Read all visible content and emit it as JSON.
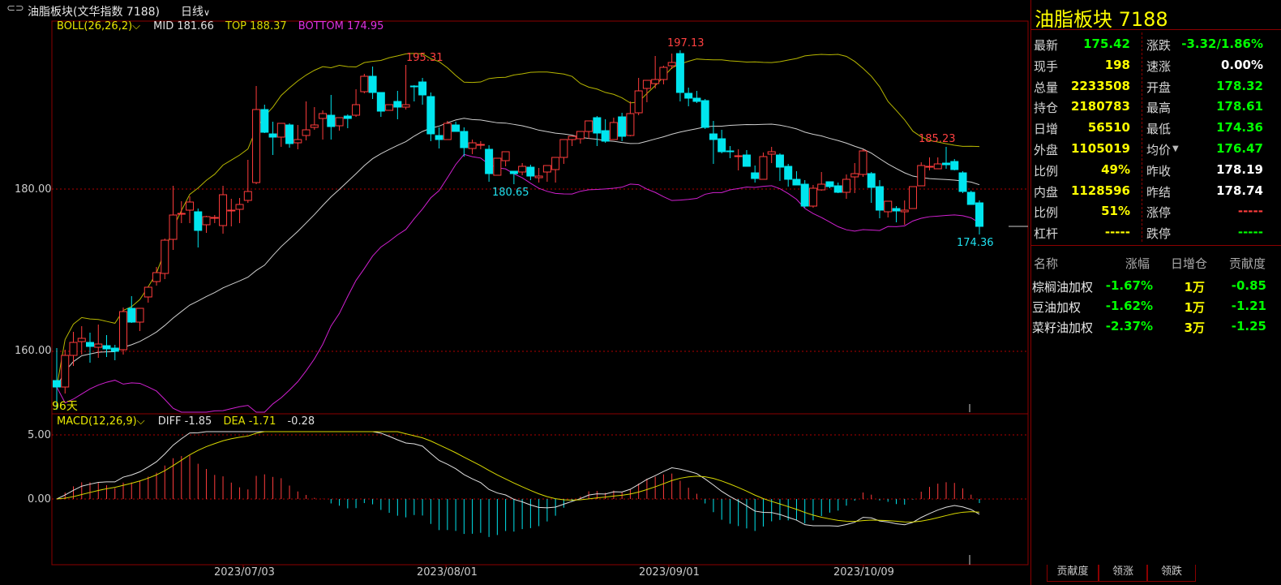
{
  "header": {
    "title": "油脂板块(文华指数  7188)",
    "period": "日线",
    "period_arrow": "∨",
    "icon": "link-icon"
  },
  "boll": {
    "label": "BOLL(26,26,2)",
    "mid": "MID 181.66",
    "top": "TOP 188.37",
    "bottom": "BOTTOM 174.95"
  },
  "macd": {
    "label": "MACD(12,26,9)",
    "diff": "DIFF -1.85",
    "dea": "DEA -1.71",
    "macd": "-0.28"
  },
  "annotations": {
    "high1": "195.31",
    "high2": "197.13",
    "high3": "185.23",
    "low1": "180.65",
    "low2": "174.36",
    "days": "96天"
  },
  "axes": {
    "price_ticks": [
      "180.00",
      "160.00"
    ],
    "macd_ticks": [
      "5.00",
      "0.00"
    ],
    "dates": [
      "2023/07/03",
      "2023/08/01",
      "2023/09/01",
      "2023/10/09"
    ]
  },
  "colors": {
    "up": "#ff3c3c",
    "down": "#00e5ee",
    "mid": "#cfcfcf",
    "top": "#b6b600",
    "bottom": "#d020d0",
    "diff": "#e0e0e0",
    "dea": "#d8d800"
  },
  "chart_data": {
    "type": "candlestick",
    "series_candles": [
      [
        156.4,
        160.4,
        152.8,
        155.6
      ],
      [
        155.6,
        160.2,
        154.8,
        159.5
      ],
      [
        159.5,
        162.4,
        158.2,
        161.1
      ],
      [
        161.2,
        163.1,
        159.6,
        161.6
      ],
      [
        161.1,
        162.3,
        158.6,
        160.6
      ],
      [
        160.5,
        163.3,
        159.2,
        160.9
      ],
      [
        160.7,
        162.0,
        159.3,
        160.3
      ],
      [
        160.4,
        160.8,
        158.9,
        160.0
      ],
      [
        160.2,
        165.4,
        159.6,
        164.9
      ],
      [
        165.3,
        166.8,
        163.5,
        163.6
      ],
      [
        163.6,
        165.3,
        162.5,
        165.3
      ],
      [
        166.7,
        167.8,
        166.0,
        167.9
      ],
      [
        168.6,
        170.4,
        168.1,
        169.7
      ],
      [
        169.6,
        173.9,
        168.9,
        173.7
      ],
      [
        173.8,
        180.4,
        172.5,
        176.8
      ],
      [
        176.9,
        178.5,
        175.8,
        177.0
      ],
      [
        177.4,
        179.1,
        175.8,
        178.4
      ],
      [
        177.2,
        177.6,
        172.8,
        174.9
      ],
      [
        175.6,
        176.7,
        174.6,
        176.6
      ],
      [
        176.4,
        176.8,
        175.8,
        176.5
      ],
      [
        175.5,
        180.4,
        174.5,
        179.3
      ],
      [
        177.4,
        178.8,
        175.4,
        177.4
      ],
      [
        177.5,
        178.9,
        175.8,
        178.1
      ],
      [
        178.6,
        183.6,
        178.3,
        179.7
      ],
      [
        180.8,
        192.7,
        180.6,
        189.8
      ],
      [
        189.8,
        190.4,
        186.9,
        187.0
      ],
      [
        186.8,
        188.3,
        184.2,
        186.4
      ],
      [
        186.4,
        188.1,
        185.2,
        188.1
      ],
      [
        187.9,
        188.1,
        185.1,
        185.6
      ],
      [
        185.7,
        187.9,
        184.9,
        186.1
      ],
      [
        186.6,
        190.8,
        186.0,
        187.3
      ],
      [
        187.6,
        190.1,
        187.3,
        187.9
      ],
      [
        188.7,
        189.7,
        186.1,
        189.3
      ],
      [
        189.1,
        191.6,
        186.1,
        187.7
      ],
      [
        187.8,
        188.8,
        187.2,
        188.8
      ],
      [
        189.0,
        189.2,
        187.5,
        188.7
      ],
      [
        189.1,
        192.3,
        188.9,
        190.4
      ],
      [
        192.0,
        194.2,
        191.8,
        193.9
      ],
      [
        193.9,
        195.1,
        191.1,
        191.9
      ],
      [
        191.9,
        191.9,
        188.9,
        189.6
      ],
      [
        189.7,
        190.3,
        190.0,
        190.4
      ],
      [
        190.8,
        192.1,
        188.6,
        190.1
      ],
      [
        190.1,
        195.3,
        189.8,
        190.4
      ],
      [
        192.7,
        192.8,
        190.8,
        192.6
      ],
      [
        193.2,
        193.7,
        190.4,
        191.6
      ],
      [
        191.4,
        191.9,
        185.9,
        186.8
      ],
      [
        186.6,
        187.6,
        185.0,
        186.1
      ],
      [
        186.1,
        188.4,
        186.5,
        188.1
      ],
      [
        187.9,
        188.3,
        187.2,
        187.1
      ],
      [
        187.1,
        187.6,
        184.0,
        185.1
      ],
      [
        185.0,
        186.1,
        184.3,
        185.7
      ],
      [
        185.4,
        185.9,
        184.9,
        185.5
      ],
      [
        184.9,
        185.4,
        180.9,
        181.9
      ],
      [
        181.7,
        183.7,
        182.4,
        183.8
      ],
      [
        183.5,
        184.6,
        182.8,
        184.6
      ],
      [
        182.2,
        182.2,
        180.6,
        181.9
      ],
      [
        182.1,
        183.2,
        181.7,
        182.8
      ],
      [
        182.7,
        183.0,
        181.1,
        181.6
      ],
      [
        181.4,
        182.6,
        180.8,
        181.6
      ],
      [
        182.1,
        182.8,
        180.9,
        182.9
      ],
      [
        182.4,
        183.1,
        180.8,
        183.9
      ],
      [
        183.9,
        185.9,
        183.1,
        186.1
      ],
      [
        186.1,
        186.5,
        185.3,
        186.5
      ],
      [
        186.2,
        187.1,
        185.6,
        187.1
      ],
      [
        187.1,
        188.4,
        186.2,
        188.4
      ],
      [
        188.8,
        189.0,
        185.3,
        186.9
      ],
      [
        187.2,
        188.6,
        185.7,
        185.9
      ],
      [
        186.1,
        188.8,
        186.3,
        188.2
      ],
      [
        188.9,
        189.4,
        185.9,
        186.5
      ],
      [
        186.6,
        190.8,
        186.5,
        189.3
      ],
      [
        189.4,
        193.7,
        189.1,
        192.1
      ],
      [
        192.4,
        193.1,
        190.7,
        193.4
      ],
      [
        193.0,
        196.4,
        192.4,
        193.5
      ],
      [
        193.5,
        195.2,
        192.9,
        195.0
      ],
      [
        195.2,
        196.7,
        194.8,
        195.6
      ],
      [
        196.7,
        197.1,
        190.8,
        191.9
      ],
      [
        191.8,
        192.5,
        190.2,
        191.2
      ],
      [
        191.2,
        192.1,
        190.6,
        190.8
      ],
      [
        190.9,
        191.1,
        187.4,
        187.6
      ],
      [
        186.8,
        188.4,
        183.1,
        186.1
      ],
      [
        186.2,
        187.3,
        184.4,
        184.6
      ],
      [
        184.7,
        185.3,
        183.8,
        184.6
      ],
      [
        184.0,
        184.9,
        182.3,
        184.1
      ],
      [
        184.2,
        184.8,
        183.0,
        182.8
      ],
      [
        182.0,
        182.9,
        180.8,
        181.3
      ],
      [
        181.2,
        184.5,
        181.3,
        184.0
      ],
      [
        184.3,
        185.2,
        183.2,
        184.6
      ],
      [
        184.2,
        184.4,
        181.0,
        182.7
      ],
      [
        182.8,
        183.1,
        180.3,
        181.2
      ],
      [
        181.2,
        182.2,
        180.6,
        180.5
      ],
      [
        180.6,
        181.1,
        177.7,
        177.9
      ],
      [
        177.9,
        180.5,
        177.7,
        180.1
      ],
      [
        179.9,
        182.1,
        179.8,
        180.6
      ],
      [
        180.9,
        180.9,
        180.1,
        180.3
      ],
      [
        180.4,
        180.8,
        179.5,
        179.6
      ],
      [
        179.6,
        181.8,
        178.8,
        181.2
      ],
      [
        181.5,
        183.2,
        179.5,
        181.9
      ],
      [
        181.8,
        184.9,
        181.5,
        184.7
      ],
      [
        181.9,
        182.1,
        178.3,
        180.2
      ],
      [
        180.3,
        181.1,
        176.4,
        177.4
      ],
      [
        177.2,
        178.5,
        176.5,
        178.5
      ],
      [
        177.6,
        177.9,
        175.9,
        177.3
      ],
      [
        177.2,
        178.6,
        175.6,
        177.4
      ],
      [
        177.6,
        180.2,
        178.1,
        180.3
      ],
      [
        180.4,
        183.3,
        180.5,
        182.9
      ],
      [
        182.8,
        183.9,
        182.3,
        182.8
      ],
      [
        182.5,
        183.9,
        182.6,
        183.1
      ],
      [
        183.2,
        185.2,
        182.5,
        183.0
      ],
      [
        183.4,
        183.7,
        182.3,
        182.4
      ],
      [
        182.0,
        182.2,
        179.5,
        179.7
      ],
      [
        179.6,
        179.8,
        178.1,
        178.1
      ],
      [
        178.3,
        178.6,
        174.4,
        175.4
      ]
    ],
    "annotations_note": "values read from price labels",
    "x_dates": [
      "2023/07/03",
      "2023/08/01",
      "2023/09/01",
      "2023/10/09"
    ]
  },
  "quote": {
    "title": "油脂板块  7188",
    "rows": [
      {
        "l1": "最新",
        "v1": "175.42",
        "c1": "#00ff00",
        "l2": "涨跌",
        "v2": "-3.32/1.86%",
        "c2": "#00ff00"
      },
      {
        "l1": "现手",
        "v1": "198",
        "c1": "#ffff00",
        "l2": "速涨",
        "v2": "0.00%",
        "c2": "#ffffff"
      },
      {
        "l1": "总量",
        "v1": "2233508",
        "c1": "#ffff00",
        "l2": "开盘",
        "v2": "178.32",
        "c2": "#00ff00"
      },
      {
        "l1": "持仓",
        "v1": "2180783",
        "c1": "#ffff00",
        "l2": "最高",
        "v2": "178.61",
        "c2": "#00ff00"
      },
      {
        "l1": "日增",
        "v1": "56510",
        "c1": "#ffff00",
        "l2": "最低",
        "v2": "174.36",
        "c2": "#00ff00"
      },
      {
        "l1": "外盘",
        "v1": "1105019",
        "c1": "#ffff00",
        "l2": "均价",
        "v2": "176.47",
        "c2": "#00ff00"
      },
      {
        "l1": "比例",
        "v1": "49%",
        "c1": "#ffff00",
        "l2": "昨收",
        "v2": "178.19",
        "c2": "#ffffff"
      },
      {
        "l1": "内盘",
        "v1": "1128596",
        "c1": "#ffff00",
        "l2": "昨结",
        "v2": "178.74",
        "c2": "#ffffff"
      },
      {
        "l1": "比例",
        "v1": "51%",
        "c1": "#ffff00",
        "l2": "涨停",
        "v2": "-----",
        "c2": "#ff3c3c"
      },
      {
        "l1": "杠杆",
        "v1": "-----",
        "c1": "#ffff00",
        "l2": "跌停",
        "v2": "-----",
        "c2": "#00ff00"
      }
    ],
    "avg_arrow": "▼",
    "list_headers": [
      "名称",
      "涨幅",
      "日增仓",
      "贡献度"
    ],
    "list": [
      {
        "name": "棕榈油加权",
        "chg": "-1.67%",
        "inc": "1万",
        "contrib": "-0.85"
      },
      {
        "name": "豆油加权",
        "chg": "-1.62%",
        "inc": "1万",
        "contrib": "-1.21"
      },
      {
        "name": "菜籽油加权",
        "chg": "-2.37%",
        "inc": "3万",
        "contrib": "-1.25"
      }
    ],
    "tabs": [
      "贡献度",
      "领涨",
      "领跌"
    ]
  }
}
